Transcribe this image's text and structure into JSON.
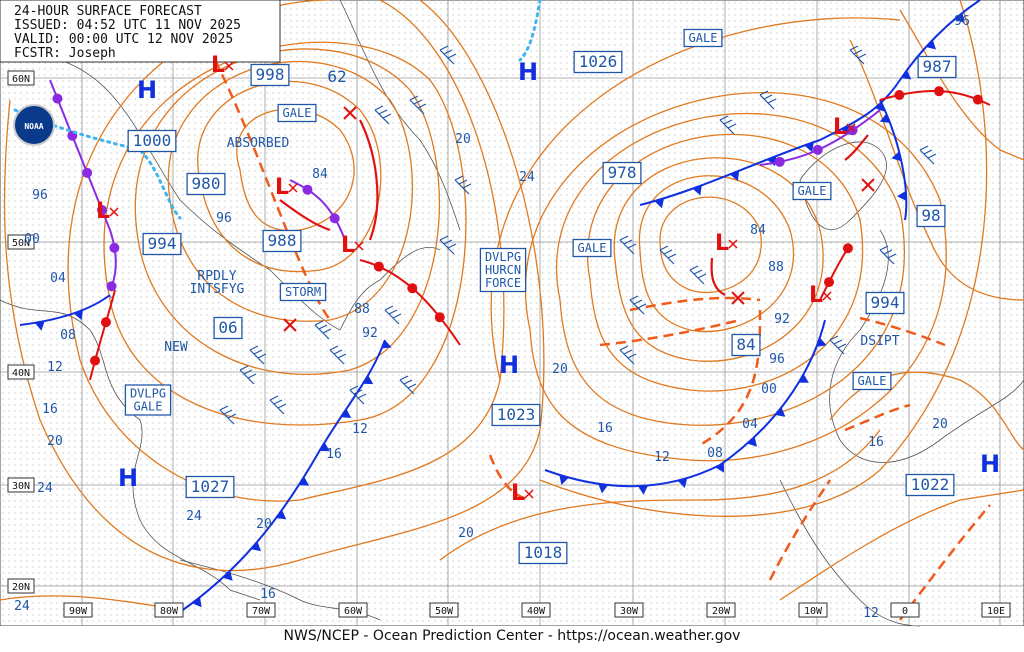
{
  "header": {
    "lines": [
      "24-HOUR SURFACE FORECAST",
      "ISSUED: 04:52 UTC 11 NOV 2025",
      "VALID:  00:00 UTC 12 NOV 2025",
      "FCSTR:  Joseph"
    ]
  },
  "logo": "NOAA",
  "footer": "NWS/NCEP - Ocean Prediction Center - https://ocean.weather.gov",
  "lat_labels": [
    "60N",
    "50N",
    "40N",
    "30N",
    "20N"
  ],
  "lon_labels": [
    "90W",
    "80W",
    "70W",
    "60W",
    "50W",
    "40W",
    "30W",
    "20W",
    "10W",
    "0",
    "10E"
  ],
  "boxed_labels": [
    [
      "998"
    ],
    [
      "GALE"
    ],
    [
      "988"
    ],
    [
      "STORM"
    ],
    [
      "06"
    ],
    [
      "DVLPG",
      "GALE"
    ],
    [
      "1027"
    ],
    [
      "1023"
    ],
    [
      "1018"
    ],
    [
      "DVLPG",
      "HURCN",
      "FORCE"
    ],
    [
      "1026"
    ],
    [
      "GALE"
    ],
    [
      "978"
    ],
    [
      "GALE"
    ],
    [
      "84"
    ],
    [
      "987"
    ],
    [
      "GALE"
    ],
    [
      "98"
    ],
    [
      "994"
    ],
    [
      "GALE"
    ],
    [
      "1022"
    ],
    [
      "1000"
    ],
    [
      "980"
    ],
    [
      "994"
    ]
  ],
  "plain_labels": [
    "62",
    "ABSORBED",
    "84",
    "RPDLY",
    "INTSFYG",
    "NEW",
    "DSIPT"
  ],
  "isobar_labels": [
    "20",
    "24",
    "96",
    "96",
    "00",
    "04",
    "08",
    "12",
    "16",
    "20",
    "24",
    "24",
    "20",
    "16",
    "12",
    "88",
    "92",
    "20",
    "16",
    "12",
    "08",
    "04",
    "00",
    "96",
    "92",
    "88",
    "84",
    "20",
    "16",
    "24",
    "12",
    "16",
    "20",
    "96"
  ],
  "highs": [
    "H",
    "H",
    "H",
    "H",
    "H"
  ],
  "lows": [
    "L",
    "L",
    "L",
    "L",
    "L",
    "L",
    "L",
    "L"
  ]
}
